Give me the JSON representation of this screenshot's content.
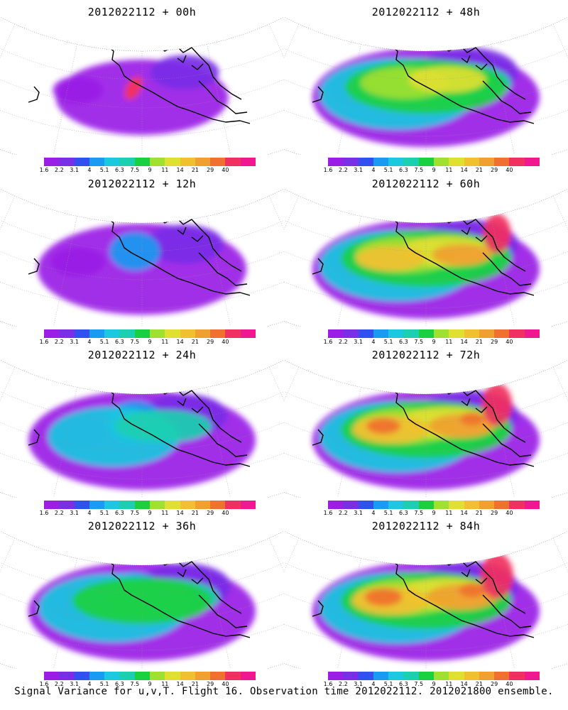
{
  "colorbar": {
    "colors": [
      "#9a1ee6",
      "#7a2ee6",
      "#3050f0",
      "#1a9af0",
      "#1ac8e0",
      "#1ad0b0",
      "#1ad040",
      "#a0e030",
      "#e0e030",
      "#f0c030",
      "#f0a030",
      "#f07030",
      "#f03060",
      "#f01890"
    ],
    "labels": [
      "1.6",
      "2.2",
      "3.1",
      "4",
      "5.1",
      "6.3",
      "7.5",
      "9",
      "11",
      "14",
      "21",
      "29",
      "40"
    ]
  },
  "panels": [
    {
      "title": "2012022112 + 00h",
      "intensity": 0.0
    },
    {
      "title": "2012022112 + 48h",
      "intensity": 0.65
    },
    {
      "title": "2012022112 + 12h",
      "intensity": 0.2
    },
    {
      "title": "2012022112 + 60h",
      "intensity": 0.8
    },
    {
      "title": "2012022112 + 24h",
      "intensity": 0.35
    },
    {
      "title": "2012022112 + 72h",
      "intensity": 0.9
    },
    {
      "title": "2012022112 + 36h",
      "intensity": 0.5
    },
    {
      "title": "2012022112 + 84h",
      "intensity": 1.0
    }
  ],
  "caption": "Signal Variance for u,v,T. Flight 16. Observation time 2012022112. 2012021800 ensemble."
}
